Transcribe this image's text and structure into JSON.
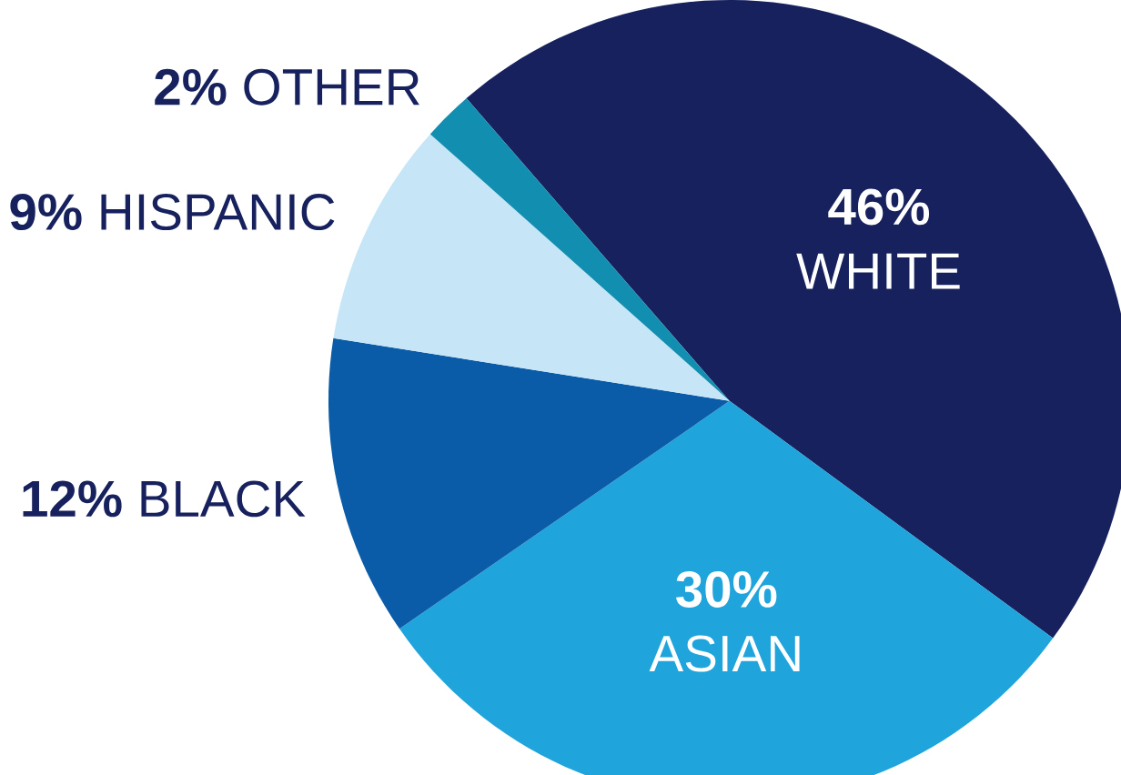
{
  "chart_data": {
    "type": "pie",
    "categories": [
      "WHITE",
      "ASIAN",
      "BLACK",
      "HISPANIC",
      "OTHER"
    ],
    "values": [
      46,
      30,
      12,
      9,
      2
    ],
    "value_labels": [
      "46%",
      "30%",
      "12%",
      "9%",
      "2%"
    ],
    "colors": [
      "#16215e",
      "#20a4dc",
      "#0a5ca8",
      "#c6e6f7",
      "#128fb0"
    ]
  }
}
